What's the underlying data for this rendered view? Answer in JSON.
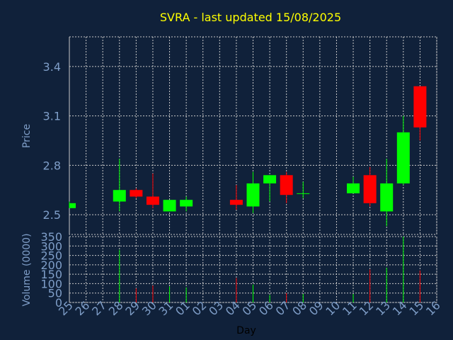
{
  "chart_data": {
    "type": "candlestick",
    "title": "SVRA - last updated 15/08/2025",
    "price_axis": {
      "label": "Price",
      "ylim": [
        2.38,
        3.58
      ],
      "ticks": [
        2.5,
        2.8,
        3.1,
        3.4
      ],
      "tick_labels": [
        "2.5",
        "2.8",
        "3.1",
        "3.4"
      ]
    },
    "volume_axis": {
      "label": "Volume (0000)",
      "ylim": [
        0,
        350
      ],
      "ticks": [
        0,
        50,
        100,
        150,
        200,
        250,
        300,
        350
      ],
      "tick_labels": [
        "0",
        "50",
        "100",
        "150",
        "200",
        "250",
        "300",
        "350"
      ]
    },
    "x_axis": {
      "label": "Day",
      "tick_labels": [
        "25",
        "26",
        "27",
        "28",
        "29",
        "30",
        "31",
        "01",
        "02",
        "03",
        "04",
        "05",
        "06",
        "07",
        "08",
        "09",
        "10",
        "11",
        "12",
        "13",
        "14",
        "15",
        "16"
      ]
    },
    "candles": [
      {
        "day": "25",
        "open": 2.54,
        "high": 2.58,
        "low": 2.54,
        "close": 2.57,
        "volume": 0
      },
      {
        "day": "28",
        "open": 2.58,
        "high": 2.84,
        "low": 2.52,
        "close": 2.65,
        "volume": 280
      },
      {
        "day": "29",
        "open": 2.65,
        "high": 2.66,
        "low": 2.6,
        "close": 2.61,
        "volume": 75
      },
      {
        "day": "30",
        "open": 2.61,
        "high": 2.75,
        "low": 2.54,
        "close": 2.56,
        "volume": 90
      },
      {
        "day": "31",
        "open": 2.52,
        "high": 2.59,
        "low": 2.52,
        "close": 2.59,
        "volume": 85
      },
      {
        "day": "01",
        "open": 2.55,
        "high": 2.61,
        "low": 2.52,
        "close": 2.59,
        "volume": 80
      },
      {
        "day": "04",
        "open": 2.59,
        "high": 2.68,
        "low": 2.53,
        "close": 2.56,
        "volume": 130
      },
      {
        "day": "05",
        "open": 2.55,
        "high": 2.76,
        "low": 2.51,
        "close": 2.69,
        "volume": 95
      },
      {
        "day": "06",
        "open": 2.69,
        "high": 2.74,
        "low": 2.58,
        "close": 2.74,
        "volume": 40
      },
      {
        "day": "07",
        "open": 2.74,
        "high": 2.76,
        "low": 2.57,
        "close": 2.62,
        "volume": 50
      },
      {
        "day": "08",
        "open": 2.63,
        "high": 2.7,
        "low": 2.6,
        "close": 2.63,
        "volume": 45
      },
      {
        "day": "11",
        "open": 2.63,
        "high": 2.73,
        "low": 2.63,
        "close": 2.69,
        "volume": 45
      },
      {
        "day": "12",
        "open": 2.74,
        "high": 2.79,
        "low": 2.55,
        "close": 2.57,
        "volume": 175
      },
      {
        "day": "13",
        "open": 2.52,
        "high": 2.84,
        "low": 2.43,
        "close": 2.69,
        "volume": 185
      },
      {
        "day": "14",
        "open": 2.69,
        "high": 3.1,
        "low": 2.68,
        "close": 3.0,
        "volume": 350
      },
      {
        "day": "15",
        "open": 3.28,
        "high": 3.28,
        "low": 2.95,
        "close": 3.03,
        "volume": 170
      }
    ],
    "colors": {
      "background": "#10213a",
      "title": "#ffff00",
      "axis_text": "#7f9ec8",
      "grid": "#c8c8c8",
      "up": "#00ff00",
      "down": "#ff0000"
    }
  }
}
